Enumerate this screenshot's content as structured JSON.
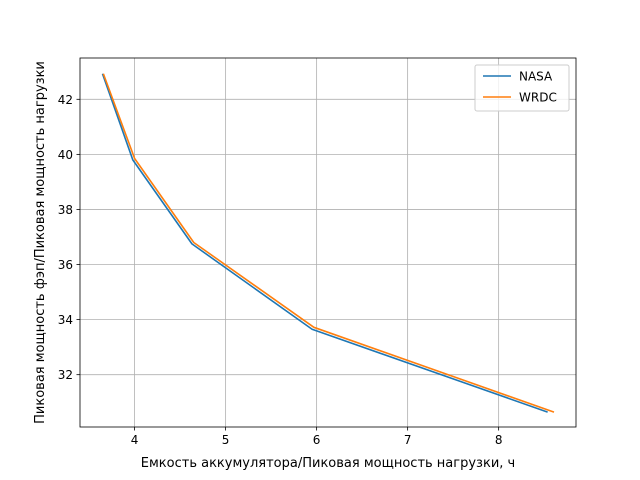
{
  "chart_data": {
    "type": "line",
    "title": "",
    "xlabel": "Емкость аккумулятора/Пиковая мощность нагрузки, ч",
    "ylabel": "Пиковая мощность фэп/Пиковая мощность нагрузки",
    "xlim": [
      3.4,
      8.85
    ],
    "ylim": [
      30.1,
      43.5
    ],
    "xticks": [
      4,
      5,
      6,
      7,
      8
    ],
    "yticks": [
      32,
      34,
      36,
      38,
      40,
      42
    ],
    "grid": true,
    "legend": "top-right",
    "series": [
      {
        "name": "NASA",
        "color": "#1f77b4",
        "x": [
          3.65,
          3.98,
          4.63,
          5.95,
          8.53
        ],
        "y": [
          42.9,
          39.8,
          36.75,
          33.65,
          30.65
        ]
      },
      {
        "name": "WRDC",
        "color": "#ff7f0e",
        "x": [
          3.66,
          4.0,
          4.65,
          5.97,
          8.6
        ],
        "y": [
          42.9,
          39.85,
          36.8,
          33.72,
          30.65
        ]
      }
    ]
  }
}
